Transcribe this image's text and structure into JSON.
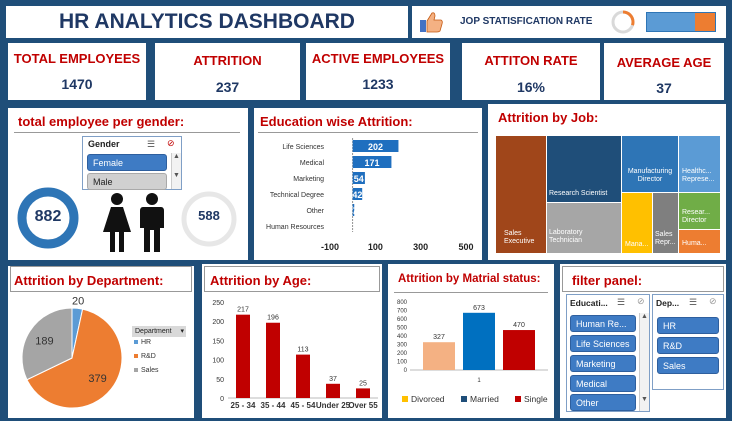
{
  "header": {
    "title": "HR ANALYTICS DASHBOARD"
  },
  "satisfaction": {
    "label": "JOP STATISFICATION RATE",
    "donut_fraction": 0.3
  },
  "kpis": [
    {
      "label": "TOTAL EMPLOYEES",
      "value": "1470"
    },
    {
      "label": "ATTRITION",
      "value": "237"
    },
    {
      "label": "ACTIVE EMPLOYEES",
      "value": "1233"
    },
    {
      "label": "ATTITON RATE",
      "value": "16%"
    },
    {
      "label": "AVERAGE AGE",
      "value": "37"
    }
  ],
  "gender": {
    "title": "total employee per gender:",
    "slicer_title": "Gender",
    "options": [
      "Female",
      "Male"
    ],
    "selected": "Female",
    "female_count": "882",
    "male_count": "588"
  },
  "education": {
    "title": "Education wise Attrition:",
    "chart_data": {
      "type": "bar",
      "orientation": "horizontal",
      "categories": [
        "Life Sciences",
        "Medical",
        "Marketing",
        "Technical Degree",
        "Other",
        "Human Resources"
      ],
      "values": [
        202,
        171,
        54,
        42,
        7,
        0
      ],
      "xticks": [
        "-100",
        "100",
        "300",
        "500"
      ],
      "xlim": [
        -100,
        500
      ],
      "color": "#1f6fbf"
    }
  },
  "job": {
    "title": "Attrition by Job:",
    "chart_data": {
      "type": "treemap",
      "items": [
        {
          "label": "Sales Executive",
          "color": "#a0461a"
        },
        {
          "label": "Research Scientist",
          "color": "#1f4e79"
        },
        {
          "label": "Laboratory Technician",
          "color": "#a6a6a6"
        },
        {
          "label": "Manufacturing Director",
          "color": "#2e75b6"
        },
        {
          "label": "Healthcare Representative",
          "color": "#5b9bd5"
        },
        {
          "label": "Manager",
          "color": "#ffc000"
        },
        {
          "label": "Sales Representative",
          "color": "#7f7f7f"
        },
        {
          "label": "Research Director",
          "color": "#70ad47"
        },
        {
          "label": "Human Resources",
          "color": "#ed7d31"
        }
      ],
      "display_labels": [
        "Sales Executive",
        "Research Scientist",
        "Laboratory Technician",
        "Manufacturing Director",
        "Healthc... Represe...",
        "Mana...",
        "Sales Repr...",
        "Resear... Director",
        "Huma..."
      ]
    }
  },
  "department": {
    "title": "Attrition by Department:",
    "legend_title": "Department",
    "chart_data": {
      "type": "pie",
      "categories": [
        "HR",
        "R&D",
        "Sales"
      ],
      "values": [
        20,
        379,
        189
      ],
      "colors": [
        "#5b9bd5",
        "#ed7d31",
        "#a5a5a5"
      ]
    }
  },
  "age": {
    "title": "Attrition by Age:",
    "chart_data": {
      "type": "bar",
      "categories": [
        "25 - 34",
        "35 - 44",
        "45 - 54",
        "Under 25",
        "Over 55"
      ],
      "values": [
        217,
        196,
        113,
        37,
        25
      ],
      "ylim": [
        0,
        250
      ],
      "yticks": [
        "0",
        "50",
        "100",
        "150",
        "200",
        "250"
      ],
      "color": "#c00000"
    }
  },
  "marital": {
    "title": "Attrition by Matrial status:",
    "chart_data": {
      "type": "bar",
      "x_label": "1",
      "ylim": [
        0,
        800
      ],
      "yticks": [
        "0",
        "100",
        "200",
        "300",
        "400",
        "500",
        "600",
        "700",
        "800"
      ],
      "series": [
        {
          "name": "Divorced",
          "values": [
            327
          ],
          "color": "#f4b183"
        },
        {
          "name": "Married",
          "values": [
            673
          ],
          "color": "#0070c0"
        },
        {
          "name": "Single",
          "values": [
            470
          ],
          "color": "#c00000"
        }
      ],
      "legend_colors": [
        "#ffc000",
        "#1f4e79",
        "#c00000"
      ]
    }
  },
  "filter": {
    "title": "filter panel:",
    "education_slicer": {
      "title": "Educati...",
      "items": [
        "Human Re...",
        "Life Sciences",
        "Marketing",
        "Medical",
        "Other"
      ]
    },
    "department_slicer": {
      "title": "Dep...",
      "items": [
        "HR",
        "R&D",
        "Sales"
      ]
    }
  }
}
